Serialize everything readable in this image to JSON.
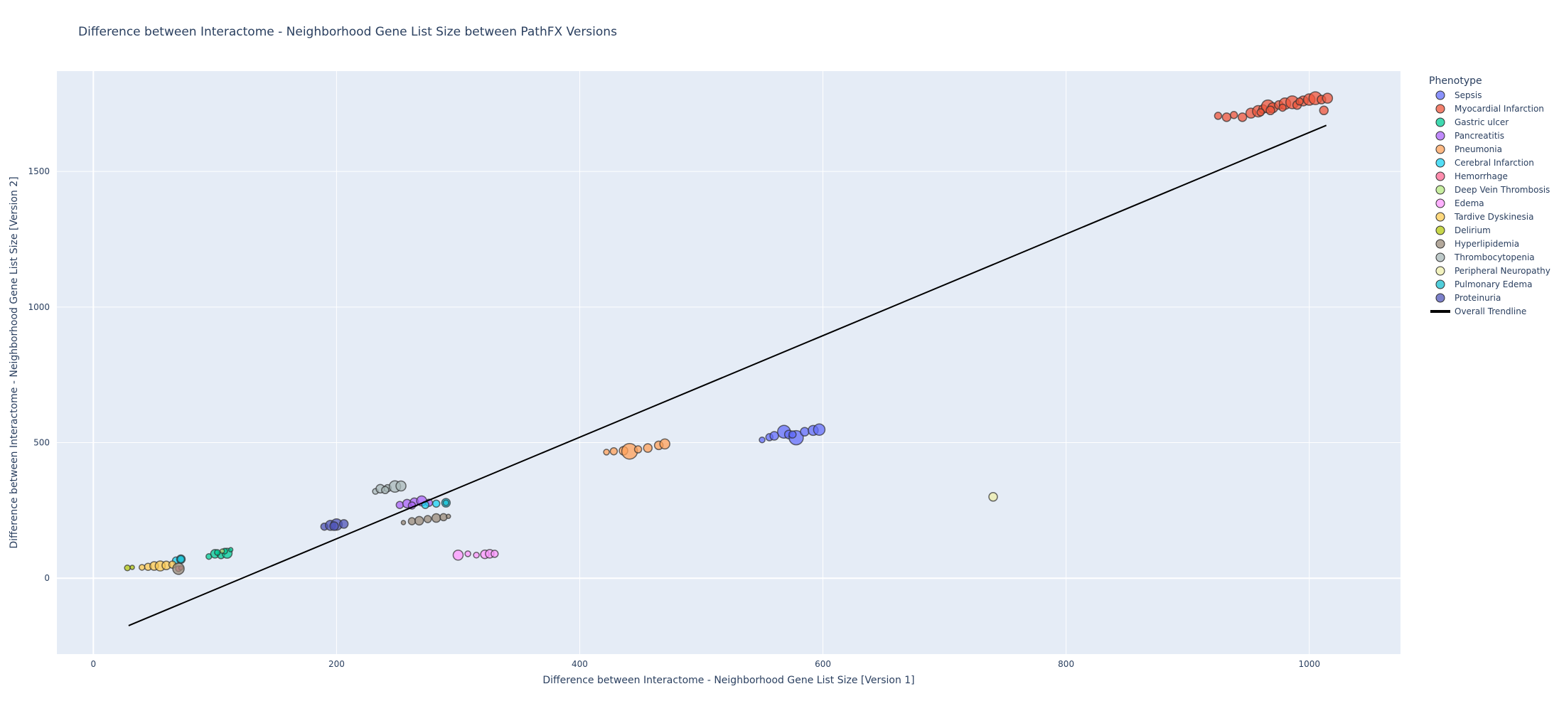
{
  "chart_data": {
    "type": "scatter",
    "title": "Difference between Interactome - Neighborhood Gene List Size between PathFX Versions",
    "xlabel": "Difference between Interactome - Neighborhood Gene List Size [Version 1]",
    "ylabel": "Difference between Interactome - Neighborhood Gene List Size [Version 2]",
    "xlim": [
      -30,
      1075
    ],
    "ylim": [
      -280,
      1870
    ],
    "x_ticks": [
      0,
      200,
      400,
      600,
      800,
      1000
    ],
    "y_ticks": [
      0,
      500,
      1000,
      1500
    ],
    "grid": true,
    "legend_title": "Phenotype",
    "legend_position": "right",
    "marker_size_encoding": "bubble size varies per point",
    "series": [
      {
        "name": "Sepsis",
        "color": "#636efa",
        "points": [
          [
            550,
            510,
            4
          ],
          [
            556,
            520,
            5
          ],
          [
            560,
            525,
            6
          ],
          [
            568,
            540,
            9
          ],
          [
            572,
            530,
            6
          ],
          [
            578,
            518,
            10
          ],
          [
            585,
            540,
            6
          ],
          [
            592,
            545,
            7
          ],
          [
            597,
            548,
            8
          ],
          [
            575,
            530,
            5
          ]
        ]
      },
      {
        "name": "Myocardial Infarction",
        "color": "#ef553b",
        "points": [
          [
            925,
            1705,
            5
          ],
          [
            932,
            1700,
            6
          ],
          [
            938,
            1708,
            5
          ],
          [
            945,
            1700,
            6
          ],
          [
            952,
            1715,
            7
          ],
          [
            958,
            1722,
            8
          ],
          [
            962,
            1730,
            6
          ],
          [
            966,
            1740,
            9
          ],
          [
            970,
            1735,
            7
          ],
          [
            975,
            1745,
            6
          ],
          [
            980,
            1750,
            8
          ],
          [
            986,
            1755,
            9
          ],
          [
            990,
            1745,
            6
          ],
          [
            995,
            1760,
            7
          ],
          [
            1000,
            1765,
            8
          ],
          [
            1005,
            1770,
            9
          ],
          [
            1010,
            1765,
            6
          ],
          [
            1015,
            1770,
            7
          ],
          [
            1012,
            1725,
            6
          ],
          [
            968,
            1725,
            6
          ],
          [
            978,
            1735,
            5
          ],
          [
            992,
            1758,
            5
          ],
          [
            960,
            1718,
            5
          ]
        ]
      },
      {
        "name": "Gastric ulcer",
        "color": "#00cc96",
        "points": [
          [
            95,
            80,
            4
          ],
          [
            100,
            90,
            6
          ],
          [
            105,
            85,
            5
          ],
          [
            110,
            92,
            7
          ],
          [
            108,
            100,
            4
          ],
          [
            113,
            105,
            3
          ],
          [
            102,
            95,
            4
          ]
        ]
      },
      {
        "name": "Pancreatitis",
        "color": "#ab63fa",
        "points": [
          [
            252,
            270,
            5
          ],
          [
            258,
            275,
            6
          ],
          [
            264,
            280,
            6
          ],
          [
            270,
            285,
            7
          ],
          [
            276,
            278,
            5
          ],
          [
            262,
            268,
            5
          ]
        ]
      },
      {
        "name": "Pneumonia",
        "color": "#ffa15a",
        "points": [
          [
            422,
            465,
            4
          ],
          [
            428,
            468,
            5
          ],
          [
            436,
            470,
            6
          ],
          [
            441,
            468,
            11
          ],
          [
            448,
            475,
            5
          ],
          [
            456,
            480,
            6
          ],
          [
            465,
            490,
            6
          ],
          [
            470,
            495,
            7
          ]
        ]
      },
      {
        "name": "Cerebral Infarction",
        "color": "#19d3f3",
        "points": [
          [
            68,
            65,
            5
          ],
          [
            72,
            70,
            6
          ],
          [
            273,
            270,
            5
          ],
          [
            282,
            275,
            5
          ],
          [
            290,
            278,
            6
          ]
        ]
      },
      {
        "name": "Hemorrhage",
        "color": "#ff6692",
        "points": [
          [
            70,
            35,
            4
          ],
          [
            72,
            38,
            3
          ]
        ]
      },
      {
        "name": "Deep Vein Thrombosis",
        "color": "#b6e880",
        "points": [
          [
            106,
            100,
            3
          ]
        ]
      },
      {
        "name": "Edema",
        "color": "#ff97ff",
        "points": [
          [
            300,
            85,
            7
          ],
          [
            308,
            90,
            4
          ],
          [
            315,
            85,
            4
          ],
          [
            322,
            88,
            6
          ],
          [
            326,
            90,
            6
          ],
          [
            330,
            90,
            5
          ]
        ]
      },
      {
        "name": "Tardive Dyskinesia",
        "color": "#fecb52",
        "points": [
          [
            45,
            42,
            5
          ],
          [
            50,
            45,
            6
          ],
          [
            55,
            45,
            7
          ],
          [
            60,
            47,
            6
          ],
          [
            65,
            50,
            5
          ],
          [
            40,
            40,
            4
          ]
        ]
      },
      {
        "name": "Delirium",
        "color": "#b5c90f",
        "points": [
          [
            28,
            38,
            4
          ],
          [
            32,
            40,
            3
          ]
        ]
      },
      {
        "name": "Hyperlipidemia",
        "color": "#9a8b7a",
        "points": [
          [
            70,
            35,
            8
          ],
          [
            255,
            205,
            3
          ],
          [
            262,
            210,
            5
          ],
          [
            268,
            212,
            6
          ],
          [
            275,
            218,
            5
          ],
          [
            282,
            222,
            6
          ],
          [
            288,
            225,
            5
          ],
          [
            292,
            228,
            3
          ]
        ]
      },
      {
        "name": "Thrombocytopenia",
        "color": "#a8b8b8",
        "points": [
          [
            232,
            320,
            4
          ],
          [
            236,
            330,
            6
          ],
          [
            242,
            332,
            5
          ],
          [
            248,
            338,
            8
          ],
          [
            253,
            340,
            7
          ],
          [
            240,
            325,
            5
          ]
        ]
      },
      {
        "name": "Peripheral Neuropathy",
        "color": "#eeeeaa",
        "points": [
          [
            740,
            300,
            6
          ]
        ]
      },
      {
        "name": "Pulmonary Edema",
        "color": "#17becf",
        "points": [
          [
            72,
            70,
            5
          ],
          [
            290,
            278,
            4
          ]
        ]
      },
      {
        "name": "Proteinuria",
        "color": "#5055b8",
        "points": [
          [
            190,
            190,
            5
          ],
          [
            195,
            195,
            7
          ],
          [
            200,
            198,
            8
          ],
          [
            206,
            200,
            6
          ],
          [
            198,
            192,
            6
          ]
        ]
      }
    ],
    "trendline": {
      "name": "Overall Trendline",
      "color": "#000000",
      "x": [
        29,
        1014
      ],
      "y": [
        -175,
        1670
      ]
    }
  }
}
